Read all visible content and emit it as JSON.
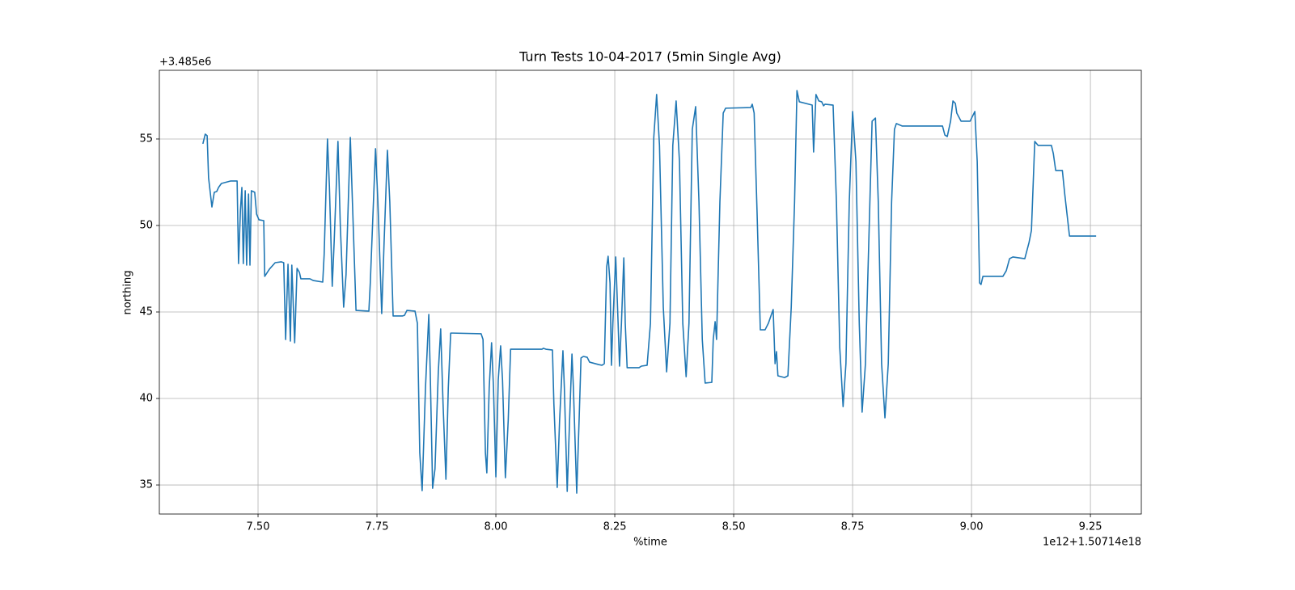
{
  "chart_data": {
    "type": "line",
    "title": "Turn Tests 10-04-2017 (5min Single Avg)",
    "x_label": "%time",
    "y_label": "northing",
    "x_offset_text": "1e12+1.50714e18",
    "y_offset_text": "+3.485e6",
    "grid": true,
    "xlim": [
      7.2925,
      9.357
    ],
    "ylim": [
      33.32,
      58.97
    ],
    "xticks": [
      {
        "value": 7.5,
        "label": "7.50"
      },
      {
        "value": 7.75,
        "label": "7.75"
      },
      {
        "value": 8.0,
        "label": "8.00"
      },
      {
        "value": 8.25,
        "label": "8.25"
      },
      {
        "value": 8.5,
        "label": "8.50"
      },
      {
        "value": 8.75,
        "label": "8.75"
      },
      {
        "value": 9.0,
        "label": "9.00"
      },
      {
        "value": 9.25,
        "label": "9.25"
      }
    ],
    "yticks": [
      35,
      40,
      45,
      50,
      55
    ],
    "series": [
      {
        "color": "#1f77b4",
        "x": [
          7.384,
          7.389,
          7.393,
          7.396,
          7.403,
          7.408,
          7.413,
          7.417,
          7.423,
          7.442,
          7.456,
          7.459,
          7.463,
          7.466,
          7.469,
          7.473,
          7.476,
          7.48,
          7.483,
          7.486,
          7.493,
          7.497,
          7.502,
          7.512,
          7.514,
          7.524,
          7.536,
          7.549,
          7.554,
          7.558,
          7.563,
          7.568,
          7.571,
          7.577,
          7.582,
          7.587,
          7.59,
          7.609,
          7.616,
          7.636,
          7.639,
          7.646,
          7.65,
          7.656,
          7.66,
          7.668,
          7.673,
          7.68,
          7.685,
          7.694,
          7.699,
          7.706,
          7.733,
          7.736,
          7.747,
          7.752,
          7.76,
          7.765,
          7.772,
          7.777,
          7.784,
          7.804,
          7.808,
          7.813,
          7.83,
          7.835,
          7.84,
          7.845,
          7.852,
          7.859,
          7.862,
          7.867,
          7.872,
          7.879,
          7.884,
          7.889,
          7.895,
          7.9,
          7.905,
          7.91,
          7.969,
          7.973,
          7.978,
          7.981,
          7.986,
          7.991,
          7.995,
          8.0,
          8.005,
          8.01,
          8.014,
          8.02,
          8.026,
          8.031,
          8.097,
          8.1,
          8.105,
          8.119,
          8.122,
          8.129,
          8.134,
          8.141,
          8.144,
          8.15,
          8.155,
          8.16,
          8.163,
          8.17,
          8.175,
          8.179,
          8.184,
          8.192,
          8.197,
          8.216,
          8.223,
          8.228,
          8.233,
          8.236,
          8.24,
          8.243,
          8.246,
          8.252,
          8.257,
          8.26,
          8.264,
          8.269,
          8.272,
          8.276,
          8.301,
          8.306,
          8.318,
          8.325,
          8.332,
          8.338,
          8.344,
          8.352,
          8.359,
          8.366,
          8.372,
          8.379,
          8.386,
          8.393,
          8.4,
          8.406,
          8.413,
          8.42,
          8.427,
          8.434,
          8.44,
          8.454,
          8.457,
          8.461,
          8.464,
          8.471,
          8.478,
          8.483,
          8.536,
          8.539,
          8.543,
          8.549,
          8.556,
          8.566,
          8.573,
          8.58,
          8.583,
          8.587,
          8.59,
          8.593,
          8.607,
          8.614,
          8.621,
          8.628,
          8.633,
          8.638,
          8.665,
          8.668,
          8.673,
          8.679,
          8.685,
          8.689,
          8.692,
          8.709,
          8.716,
          8.723,
          8.73,
          8.736,
          8.743,
          8.75,
          8.757,
          8.764,
          8.77,
          8.777,
          8.784,
          8.791,
          8.798,
          8.804,
          8.811,
          8.818,
          8.825,
          8.832,
          8.838,
          8.842,
          8.854,
          8.939,
          8.944,
          8.949,
          8.956,
          8.961,
          8.966,
          8.969,
          8.978,
          8.997,
          9.007,
          9.012,
          9.017,
          9.02,
          9.024,
          9.066,
          9.073,
          9.08,
          9.087,
          9.112,
          9.121,
          9.126,
          9.133,
          9.14,
          9.168,
          9.172,
          9.177,
          9.191,
          9.196,
          9.206,
          9.262
        ],
        "values": [
          54.72,
          55.28,
          55.19,
          52.76,
          51.07,
          51.92,
          51.96,
          52.2,
          52.43,
          52.57,
          52.57,
          47.8,
          50.89,
          52.2,
          47.8,
          52.01,
          47.71,
          51.82,
          47.71,
          52.01,
          51.92,
          50.65,
          50.33,
          50.28,
          47.06,
          47.48,
          47.85,
          47.9,
          47.85,
          43.41,
          47.76,
          43.32,
          47.71,
          43.22,
          47.52,
          47.29,
          46.92,
          46.92,
          46.82,
          46.73,
          48.32,
          55.0,
          52.29,
          46.49,
          49.02,
          54.86,
          49.95,
          45.28,
          47.15,
          55.09,
          50.89,
          45.09,
          45.05,
          46.68,
          54.44,
          51.36,
          44.91,
          49.02,
          54.35,
          51.36,
          44.77,
          44.77,
          44.81,
          45.09,
          45.05,
          44.35,
          36.87,
          34.67,
          40.61,
          44.86,
          41.54,
          34.81,
          35.93,
          41.54,
          44.02,
          39.67,
          35.33,
          40.61,
          43.78,
          43.78,
          43.74,
          43.41,
          36.87,
          35.7,
          40.61,
          43.22,
          40.61,
          35.47,
          41.07,
          43.04,
          41.07,
          35.42,
          38.74,
          42.85,
          42.85,
          42.9,
          42.85,
          42.8,
          39.67,
          34.86,
          38.74,
          42.76,
          40.61,
          34.63,
          38.74,
          42.57,
          40.61,
          34.53,
          38.74,
          42.34,
          42.43,
          42.38,
          42.1,
          41.96,
          41.92,
          42.01,
          47.62,
          48.22,
          46.68,
          41.92,
          44.35,
          48.18,
          44.35,
          41.87,
          44.35,
          48.13,
          44.35,
          41.78,
          41.78,
          41.87,
          41.92,
          44.35,
          55.09,
          57.57,
          54.63,
          45.28,
          41.54,
          44.35,
          54.63,
          57.2,
          53.69,
          44.35,
          41.26,
          44.35,
          55.56,
          56.87,
          51.36,
          43.41,
          40.89,
          40.93,
          43.41,
          44.44,
          43.41,
          51.36,
          56.5,
          56.78,
          56.82,
          57.01,
          56.5,
          50.89,
          43.97,
          43.97,
          44.35,
          44.91,
          45.14,
          42.01,
          42.71,
          41.31,
          41.21,
          41.31,
          45.28,
          51.36,
          57.8,
          57.15,
          56.96,
          54.25,
          57.57,
          57.2,
          57.15,
          56.92,
          57.01,
          56.96,
          51.36,
          42.94,
          39.53,
          42.01,
          51.36,
          56.59,
          53.69,
          44.35,
          39.21,
          42.01,
          49.02,
          56.03,
          56.21,
          51.36,
          42.01,
          38.88,
          42.01,
          51.36,
          55.56,
          55.89,
          55.75,
          55.75,
          55.23,
          55.14,
          56.03,
          57.2,
          57.06,
          56.5,
          56.03,
          56.03,
          56.59,
          53.69,
          46.68,
          46.59,
          47.06,
          47.06,
          47.38,
          48.08,
          48.18,
          48.08,
          49.02,
          49.72,
          54.86,
          54.63,
          54.63,
          54.16,
          53.18,
          53.18,
          51.82,
          49.39,
          49.39
        ]
      }
    ]
  }
}
